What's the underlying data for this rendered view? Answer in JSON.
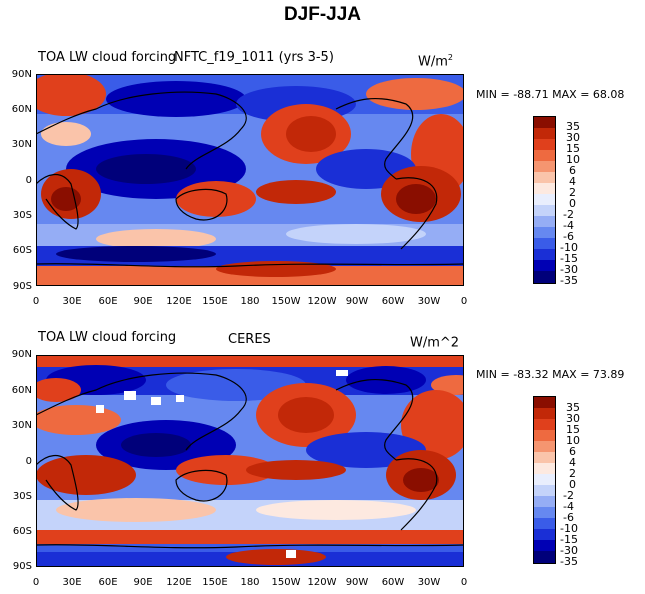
{
  "title": "DJF-JJA",
  "colors": {
    "scale": [
      "#00007a",
      "#0000b4",
      "#1a2fd6",
      "#3a5ce8",
      "#6688f0",
      "#95adf5",
      "#c4d3fa",
      "#e9eefd",
      "#fde9e0",
      "#fac4aa",
      "#f59570",
      "#ee6a40",
      "#e0401c",
      "#c22808",
      "#8a0e00"
    ]
  },
  "colorbar": {
    "labels": [
      "35",
      "30",
      "15",
      "10",
      "6",
      "4",
      "2",
      "0",
      "-2",
      "-4",
      "-6",
      "-10",
      "-15",
      "-30",
      "-35"
    ]
  },
  "panels": [
    {
      "left_title": "TOA LW cloud forcing",
      "center_title": "NFTC_f19_1011 (yrs 3-5)",
      "units": "W/m",
      "units_sup": "2",
      "min_label": "MIN =",
      "min_value": "-88.71",
      "max_label": "MAX =",
      "max_value": "68.08"
    },
    {
      "left_title": "TOA LW cloud forcing",
      "center_title": "CERES",
      "units": "W/m^2",
      "units_sup": "",
      "min_label": "MIN =",
      "min_value": "-83.32",
      "max_label": "MAX =",
      "max_value": "73.89"
    }
  ],
  "axes": {
    "lat_labels": [
      "90N",
      "60N",
      "30N",
      "0",
      "30S",
      "60S",
      "90S"
    ],
    "lon_labels": [
      "0",
      "30E",
      "60E",
      "90E",
      "120E",
      "150E",
      "180",
      "150W",
      "120W",
      "90W",
      "60W",
      "30W",
      "0"
    ]
  }
}
